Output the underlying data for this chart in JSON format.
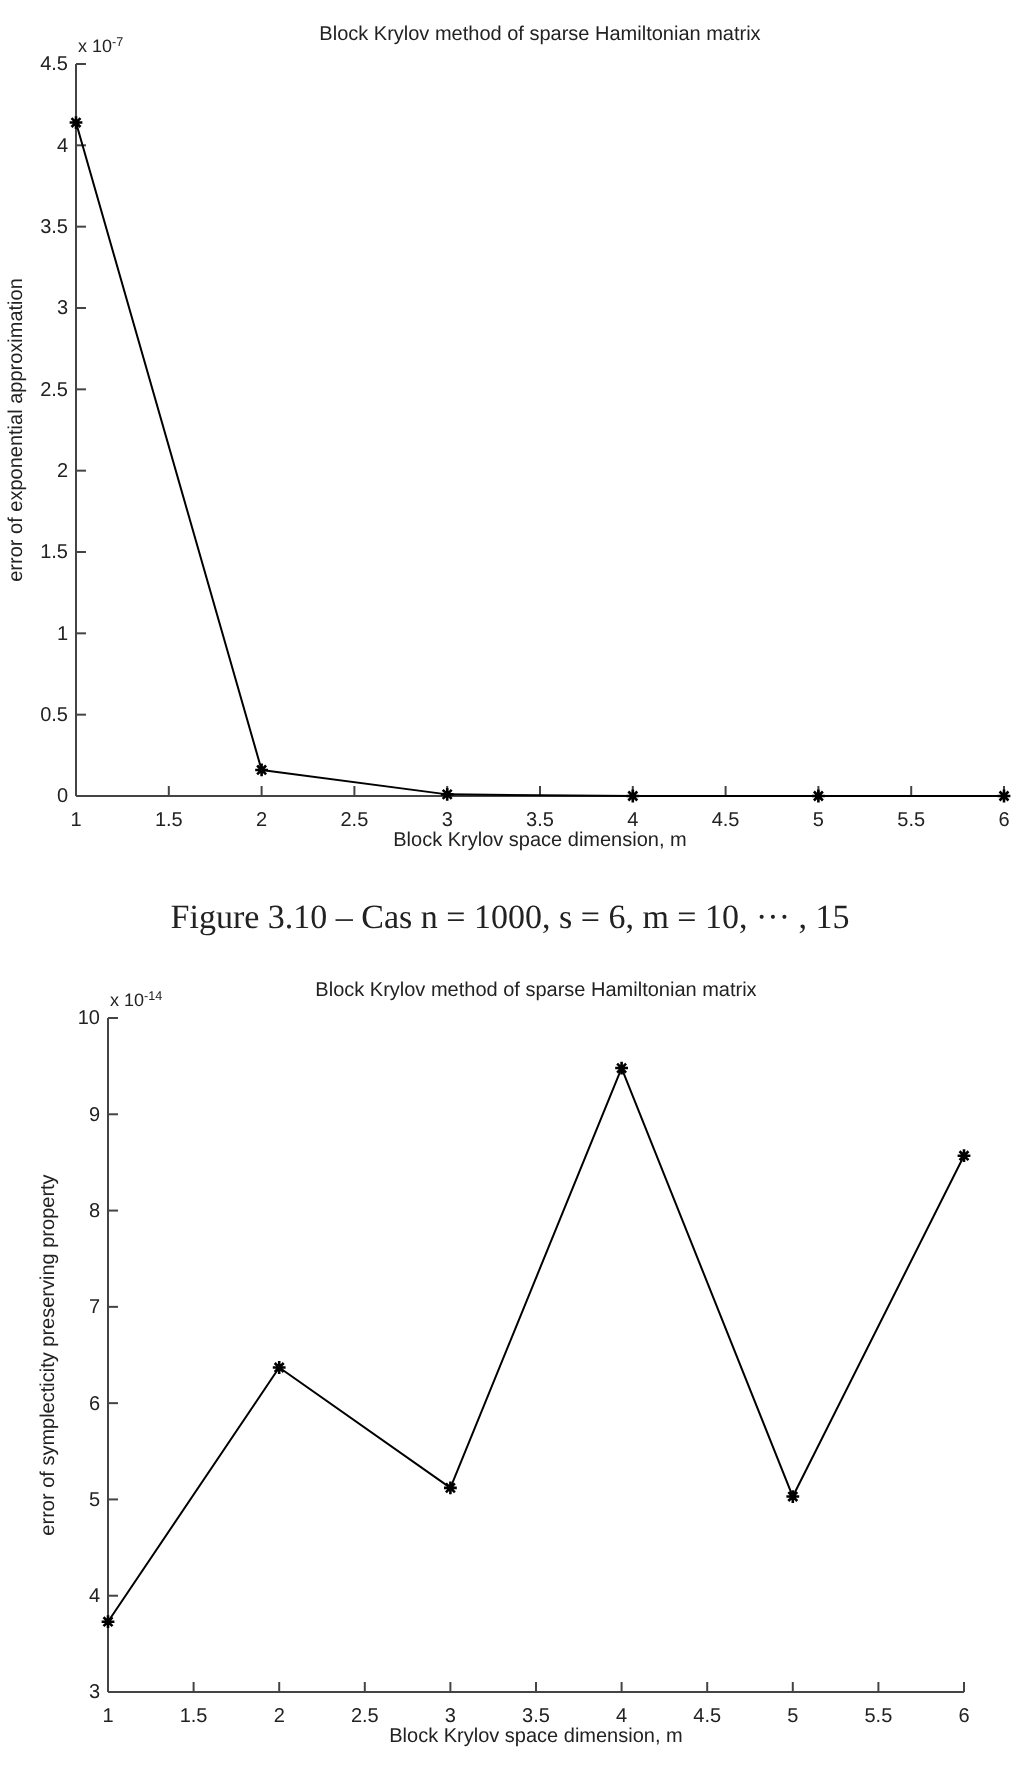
{
  "chart_data": [
    {
      "type": "line",
      "title": "Block Krylov method of sparse Hamiltonian matrix",
      "xlabel": "Block Krylov space dimension, m",
      "ylabel": "error of exponential approximation",
      "x": [
        1,
        2,
        3,
        4,
        5,
        6
      ],
      "series": [
        {
          "color": "#000000",
          "values": [
            4.14,
            0.16,
            0.01,
            0,
            0,
            0
          ]
        }
      ],
      "xlim": [
        1,
        6
      ],
      "xticks": [
        1,
        1.5,
        2,
        2.5,
        3,
        3.5,
        4,
        4.5,
        5,
        5.5,
        6
      ],
      "ylim": [
        0,
        4.5
      ],
      "yticks": [
        0,
        0.5,
        1,
        1.5,
        2,
        2.5,
        3,
        3.5,
        4,
        4.5
      ],
      "marker": "cross",
      "annotations": [
        "x 10$^{-7}$",
        "Figure 3.10 – Cas n = 1000, s = 6, m = 10, ··· , 15"
      ]
    },
    {
      "type": "line",
      "title": "Block Krylov method of sparse Hamiltonian matrix",
      "xlabel": "Block Krylov space dimension, m",
      "ylabel": "error of symplecticity preserving property",
      "x": [
        1,
        2,
        3,
        4,
        5,
        6
      ],
      "series": [
        {
          "color": "#000000",
          "values": [
            3.73,
            6.37,
            5.12,
            9.48,
            5.03,
            8.57
          ]
        }
      ],
      "xlim": [
        1,
        6
      ],
      "xticks": [
        1,
        1.5,
        2,
        2.5,
        3,
        3.5,
        4,
        4.5,
        5,
        5.5,
        6
      ],
      "ylim": [
        3,
        10
      ],
      "yticks": [
        3,
        4,
        5,
        6,
        7,
        8,
        9,
        10
      ],
      "marker": "cross",
      "annotations": [
        "x 10$^{-14}$"
      ]
    }
  ]
}
